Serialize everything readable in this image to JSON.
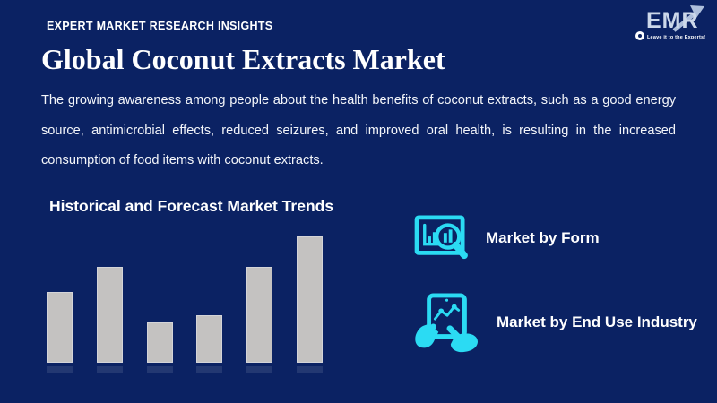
{
  "header": {
    "kicker": "EXPERT MARKET RESEARCH INSIGHTS",
    "logo": {
      "text": "EMR",
      "tagline": "Leave it to the Experts!"
    }
  },
  "title": "Global Coconut Extracts Market",
  "description": "The growing awareness among people about the health benefits of coconut extracts, such as a good energy source, antimicrobial effects, reduced seizures, and improved oral health, is resulting in the increased consumption of food items with coconut extracts.",
  "chart_section": {
    "heading": "Historical and Forecast Market Trends"
  },
  "chart_data": {
    "type": "bar",
    "title": "Historical and Forecast Market Trends",
    "categories": [
      "",
      "",
      "",
      "",
      "",
      ""
    ],
    "values": [
      79,
      107,
      45,
      53,
      107,
      141
    ],
    "value_unit": "relative height (unlabeled decorative bars)",
    "xlabel": "",
    "ylabel": "",
    "axes_shown": false,
    "legend": false,
    "bar_color": "#c4c2c1"
  },
  "segments": [
    {
      "label": "Market by Form",
      "icon": "bar-chart-magnifier-icon"
    },
    {
      "label": "Market by End Use Industry",
      "icon": "tablet-hands-chart-icon"
    }
  ],
  "colors": {
    "background": "#0b2263",
    "accent_cyan": "#2bdbf3",
    "bar_gray": "#c4c2c1",
    "text_white": "#ffffff",
    "logo_letters": "#ccd8ea"
  }
}
